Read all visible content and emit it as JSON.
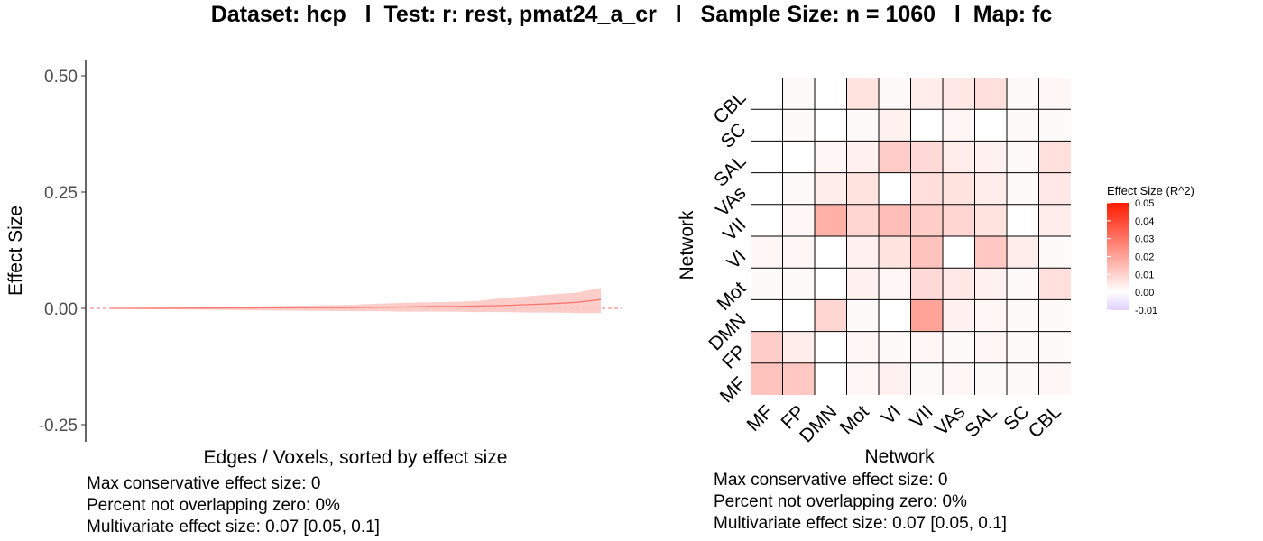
{
  "title": "Dataset: hcp   l  Test: r: rest, pmat24_a_cr   l   Sample Size: n = 1060   l  Map: fc",
  "chart_data": [
    {
      "type": "area",
      "xlabel": "Edges / Voxels, sorted by effect size",
      "ylabel": "Effect Size",
      "ylim": [
        -0.28,
        0.54
      ],
      "yticks": [
        -0.25,
        0.0,
        0.25,
        0.5
      ],
      "ytick_labels": [
        "-0.25",
        "0.00",
        "0.25",
        "0.50"
      ],
      "reference_line": 0,
      "series_color": "#f8766d",
      "band_color": "#fbc6c0",
      "x": [
        0,
        0.1,
        0.2,
        0.3,
        0.4,
        0.5,
        0.55,
        0.6,
        0.65,
        0.7,
        0.75,
        0.8,
        0.85,
        0.9,
        0.95,
        1.0
      ],
      "estimate": [
        0,
        0,
        0.0005,
        0.001,
        0.0015,
        0.002,
        0.0025,
        0.003,
        0.004,
        0.004,
        0.005,
        0.006,
        0.008,
        0.01,
        0.013,
        0.019
      ],
      "upper": [
        0.001,
        0.002,
        0.003,
        0.004,
        0.006,
        0.008,
        0.01,
        0.012,
        0.013,
        0.014,
        0.016,
        0.022,
        0.026,
        0.03,
        0.034,
        0.044
      ],
      "lower": [
        -0.001,
        -0.002,
        -0.003,
        -0.004,
        -0.005,
        -0.006,
        -0.006,
        -0.007,
        -0.007,
        -0.007,
        -0.008,
        -0.008,
        -0.009,
        -0.009,
        -0.01,
        -0.01
      ]
    },
    {
      "type": "heatmap",
      "xlabel": "Network",
      "ylabel": "Network",
      "networks": [
        "MF",
        "FP",
        "DMN",
        "Mot",
        "VI",
        "VII",
        "VAs",
        "SAL",
        "SC",
        "CBL"
      ],
      "legend_title": "Effect Size (R^2)",
      "legend_ticks": [
        "0.05",
        "0.04",
        "0.03",
        "0.02",
        "0.01",
        "0.00",
        "-0.01"
      ],
      "legend_range": [
        -0.01,
        0.05
      ],
      "values": [
        [
          0.013,
          0.012,
          0.0,
          0.002,
          0.003,
          0.001,
          0.002,
          0.001,
          0.001,
          0.002
        ],
        [
          0.011,
          0.004,
          0.0,
          0.002,
          0.001,
          0.002,
          0.001,
          0.002,
          0.001,
          0.001
        ],
        [
          0.0,
          0.0,
          0.009,
          0.001,
          0.0,
          0.02,
          0.003,
          0.002,
          0.001,
          0.001
        ],
        [
          0.001,
          0.001,
          0.0,
          0.003,
          0.002,
          0.008,
          0.005,
          0.003,
          0.001,
          0.007
        ],
        [
          0.002,
          0.002,
          0.0,
          0.003,
          0.006,
          0.013,
          0.0,
          0.012,
          0.004,
          0.001
        ],
        [
          0.0,
          0.002,
          0.017,
          0.009,
          0.014,
          0.011,
          0.009,
          0.006,
          0.0,
          0.004
        ],
        [
          0.0,
          0.001,
          0.004,
          0.006,
          0.0,
          0.007,
          0.006,
          0.004,
          0.001,
          0.005
        ],
        [
          0.0,
          0.0,
          0.002,
          0.003,
          0.011,
          0.008,
          0.004,
          0.003,
          0.001,
          0.007
        ],
        [
          0.0,
          0.001,
          0.0,
          0.001,
          0.003,
          0.0,
          0.002,
          0.0,
          0.001,
          0.001
        ],
        [
          0.0,
          0.001,
          0.0,
          0.006,
          0.001,
          0.004,
          0.005,
          0.007,
          0.001,
          0.002
        ]
      ]
    }
  ],
  "left_stats": {
    "line1": "Max conservative effect size: 0",
    "line2": "Percent not overlapping zero: 0%",
    "line3": "Multivariate effect size: 0.07 [0.05, 0.1]"
  },
  "right_stats": {
    "line1": "Max conservative effect size: 0",
    "line2": "Percent not overlapping zero: 0%",
    "line3": "Multivariate effect size: 0.07 [0.05, 0.1]"
  }
}
